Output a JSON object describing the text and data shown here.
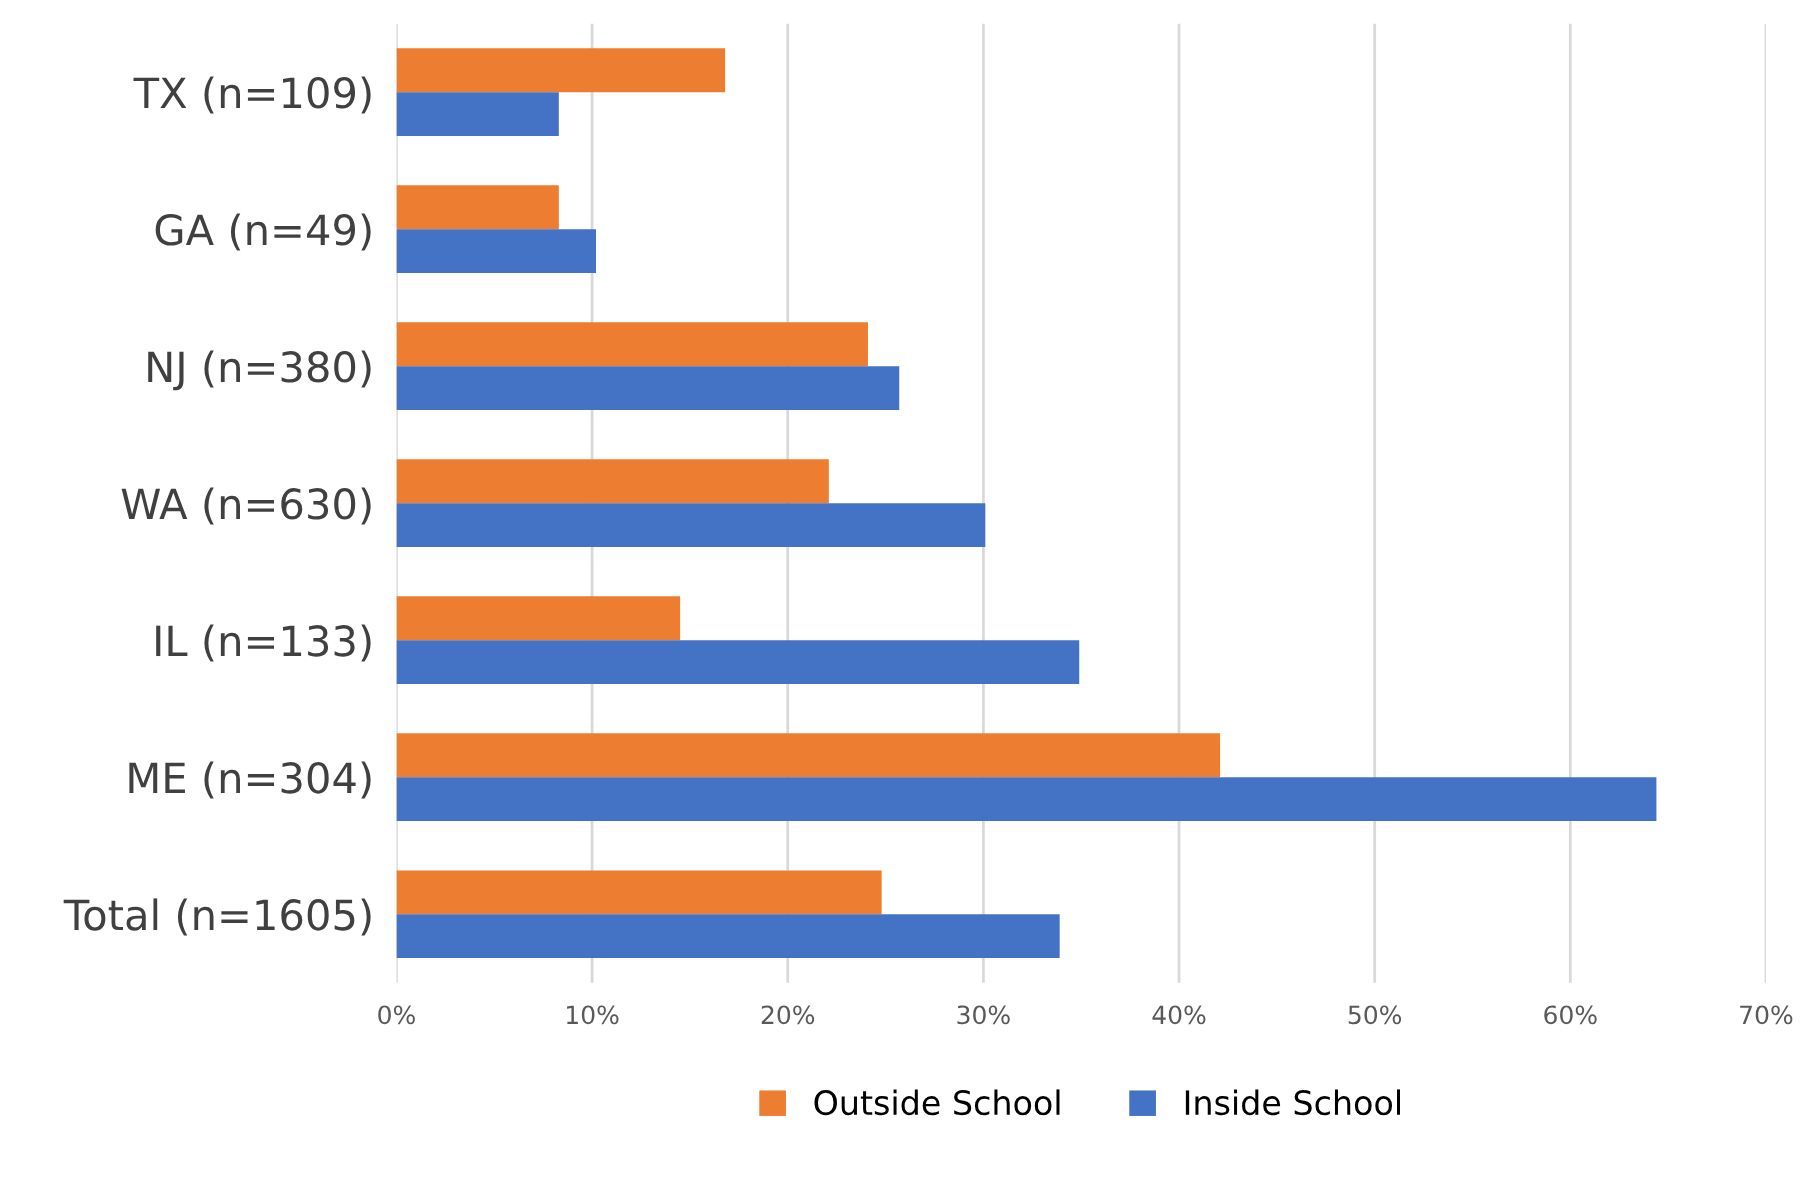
{
  "chart_data": {
    "type": "bar",
    "orientation": "horizontal",
    "categories": [
      "TX (n=109)",
      "GA (n=49)",
      "NJ (n=380)",
      "WA (n=630)",
      "IL (n=133)",
      "ME (n=304)",
      "Total (n=1605)"
    ],
    "series": [
      {
        "name": "Outside School",
        "color": "#ed7d31",
        "values": [
          16.8,
          8.3,
          24.1,
          22.1,
          14.5,
          42.1,
          24.8
        ]
      },
      {
        "name": "Inside School",
        "color": "#4472c4",
        "values": [
          8.3,
          10.2,
          25.7,
          30.1,
          34.9,
          64.4,
          33.9
        ]
      }
    ],
    "xlim": [
      0,
      70
    ],
    "xticks": [
      {
        "value": 0,
        "label": "0%"
      },
      {
        "value": 10,
        "label": "10%"
      },
      {
        "value": 20,
        "label": "20%"
      },
      {
        "value": 30,
        "label": "30%"
      },
      {
        "value": 40,
        "label": "40%"
      },
      {
        "value": 50,
        "label": "50%"
      },
      {
        "value": 60,
        "label": "60%"
      },
      {
        "value": 70,
        "label": "70%"
      }
    ],
    "grid": "x",
    "legend": "bottom"
  }
}
